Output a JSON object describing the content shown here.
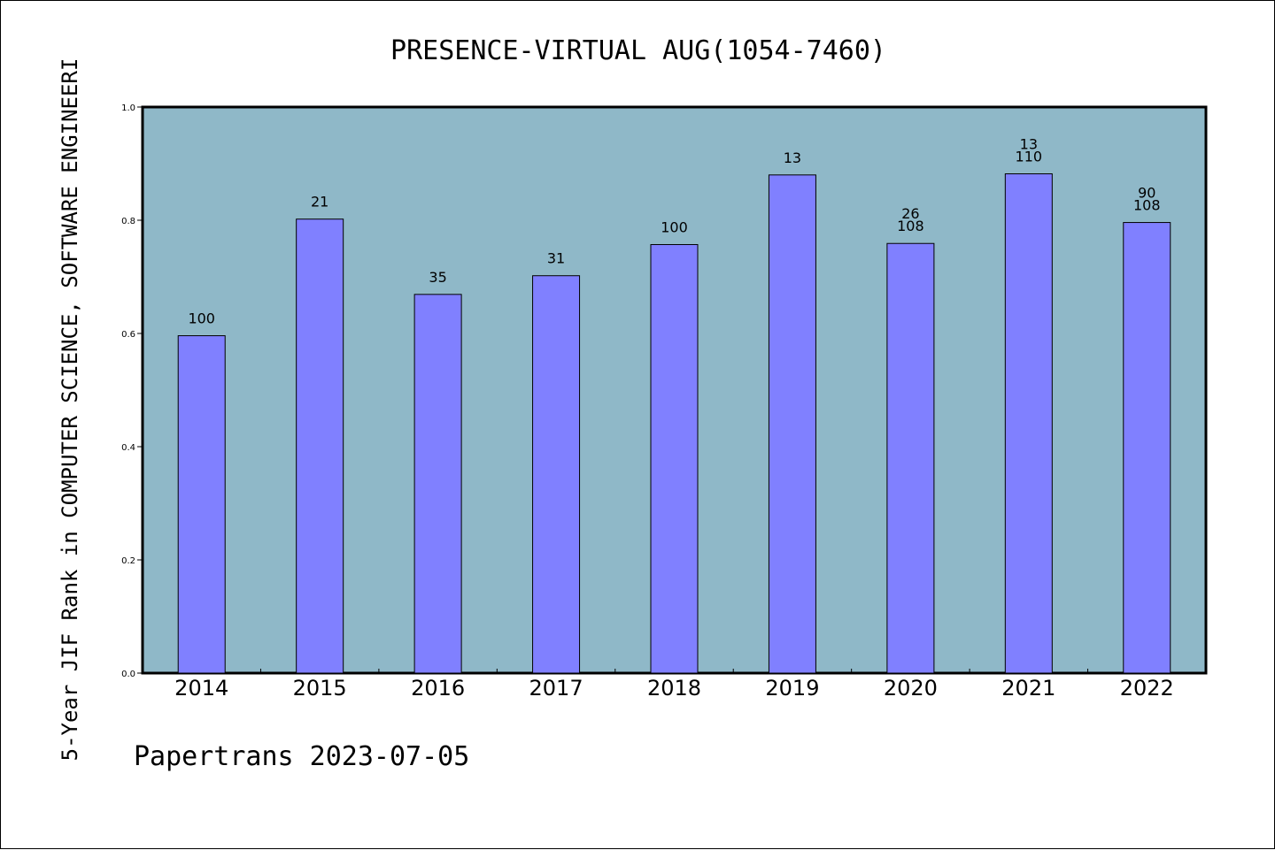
{
  "footer": "Papertrans 2023-07-05",
  "colors": {
    "plot_bg": "#8fb8c8",
    "bar": "#8080ff"
  },
  "chart_data": {
    "type": "bar",
    "title": "PRESENCE-VIRTUAL AUG(1054-7460)",
    "xlabel": "",
    "ylabel": "5-Year JIF Rank in COMPUTER SCIENCE, SOFTWARE ENGINEERI",
    "ylim": [
      0.0,
      1.0
    ],
    "yticks": [
      "0.0",
      "0.2",
      "0.4",
      "0.6",
      "0.8",
      "1.0"
    ],
    "grid": false,
    "categories": [
      "2014",
      "2015",
      "2016",
      "2017",
      "2018",
      "2019",
      "2020",
      "2021",
      "2022"
    ],
    "values": [
      0.596,
      0.802,
      0.669,
      0.702,
      0.757,
      0.88,
      0.759,
      0.882,
      0.796
    ],
    "labels": [
      [
        "100"
      ],
      [
        "21"
      ],
      [
        "35"
      ],
      [
        "31"
      ],
      [
        "100"
      ],
      [
        "13"
      ],
      [
        "26",
        "108"
      ],
      [
        "13",
        "110"
      ],
      [
        "90",
        "108"
      ]
    ]
  }
}
